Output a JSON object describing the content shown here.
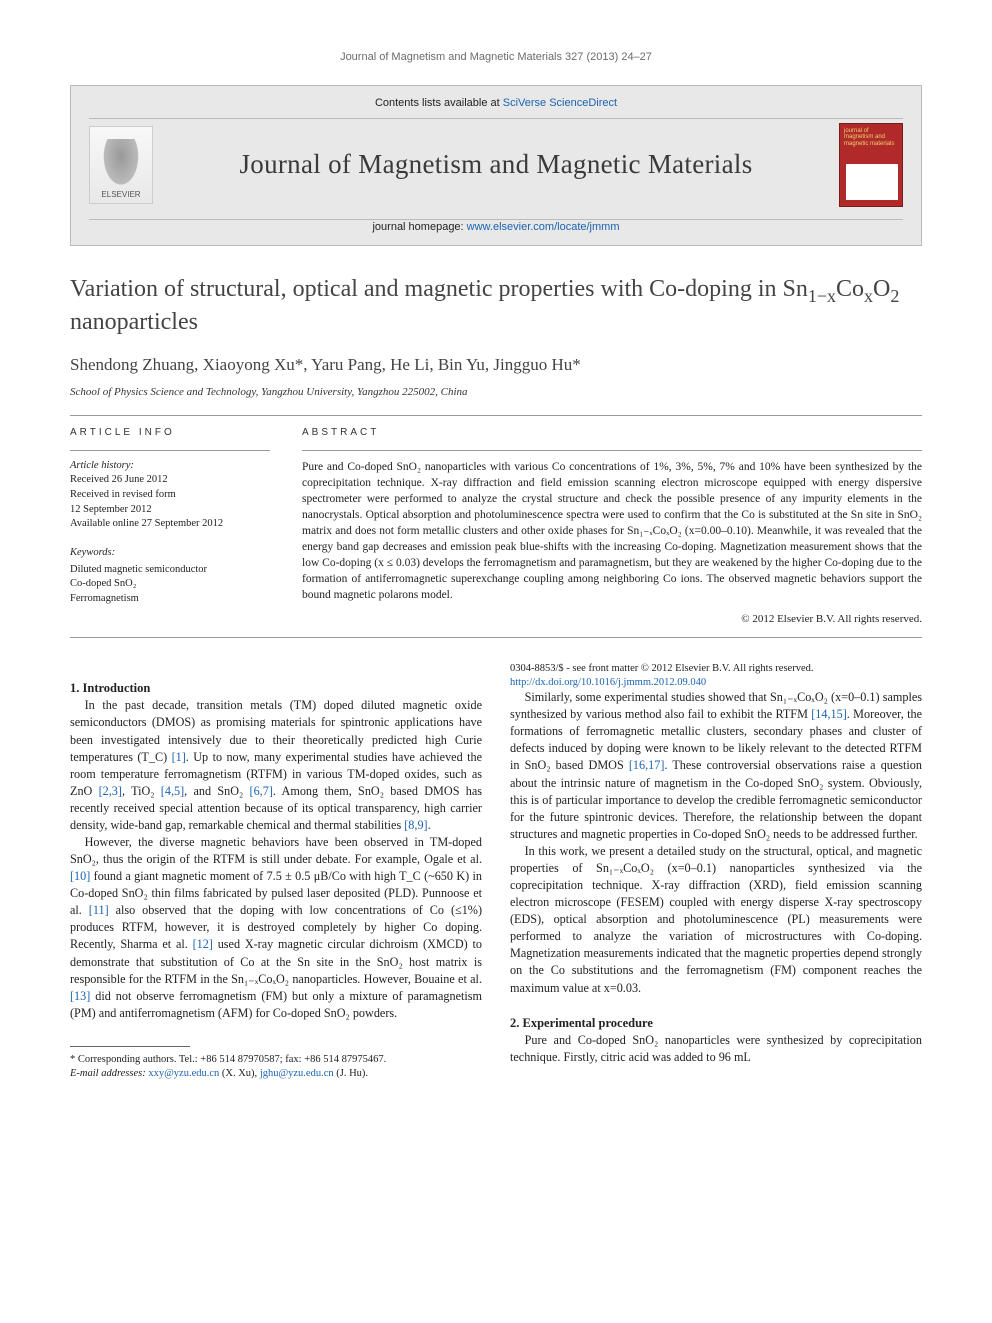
{
  "running_head": "Journal of Magnetism and Magnetic Materials 327 (2013) 24–27",
  "banner": {
    "contents_prefix": "Contents lists available at ",
    "contents_link": "SciVerse ScienceDirect",
    "journal_title": "Journal of Magnetism and Magnetic Materials",
    "homepage_prefix": "journal homepage: ",
    "homepage_link": "www.elsevier.com/locate/jmmm",
    "elsevier_label": "ELSEVIER",
    "cover_text": "journal of magnetism and magnetic materials"
  },
  "title_parts": {
    "a": "Variation of structural, optical and magnetic properties with Co-doping in Sn",
    "b": "1−x",
    "c": "Co",
    "d": "x",
    "e": "O",
    "f": "2",
    "g": " nanoparticles"
  },
  "authors": "Shendong Zhuang, Xiaoyong Xu*, Yaru Pang, He Li, Bin Yu, Jingguo Hu*",
  "affiliation": "School of Physics Science and Technology, Yangzhou University, Yangzhou 225002, China",
  "article_info_head": "article info",
  "abstract_head": "abstract",
  "history": {
    "label": "Article history:",
    "received": "Received 26 June 2012",
    "revised": "Received in revised form",
    "revised_date": "12 September 2012",
    "online": "Available online 27 September 2012"
  },
  "keywords_label": "Keywords:",
  "keywords": [
    "Diluted magnetic semiconductor",
    "Co-doped SnO₂",
    "Ferromagnetism"
  ],
  "abstract": "Pure and Co-doped SnO₂ nanoparticles with various Co concentrations of 1%, 3%, 5%, 7% and 10% have been synthesized by the coprecipitation technique. X-ray diffraction and field emission scanning electron microscope equipped with energy dispersive spectrometer were performed to analyze the crystal structure and check the possible presence of any impurity elements in the nanocrystals. Optical absorption and photoluminescence spectra were used to confirm that the Co is substituted at the Sn site in SnO₂ matrix and does not form metallic clusters and other oxide phases for Sn₁₋ₓCoₓO₂ (x=0.00–0.10). Meanwhile, it was revealed that the energy band gap decreases and emission peak blue-shifts with the increasing Co-doping. Magnetization measurement shows that the low Co-doping (x ≤ 0.03) develops the ferromagnetism and paramagnetism, but they are weakened by the higher Co-doping due to the formation of antiferromagnetic superexchange coupling among neighboring Co ions. The observed magnetic behaviors support the bound magnetic polarons model.",
  "copyright": "© 2012 Elsevier B.V. All rights reserved.",
  "section1": "1. Introduction",
  "intro_p1": "In the past decade, transition metals (TM) doped diluted magnetic oxide semiconductors (DMOS) as promising materials for spintronic applications have been investigated intensively due to their theoretically predicted high Curie temperatures (T_C) [1]. Up to now, many experimental studies have achieved the room temperature ferromagnetism (RTFM) in various TM-doped oxides, such as ZnO [2,3], TiO₂ [4,5], and SnO₂ [6,7]. Among them, SnO₂ based DMOS has recently received special attention because of its optical transparency, high carrier density, wide-band gap, remarkable chemical and thermal stabilities [8,9].",
  "intro_p2": "However, the diverse magnetic behaviors have been observed in TM-doped SnO₂, thus the origin of the RTFM is still under debate. For example, Ogale et al. [10] found a giant magnetic moment of 7.5 ± 0.5 μB/Co with high T_C (~650 K) in Co-doped SnO₂ thin films fabricated by pulsed laser deposited (PLD). Punnoose et al. [11] also observed that the doping with low concentrations of Co (≤1%) produces RTFM, however, it is destroyed completely by higher Co doping. Recently, Sharma et al. [12] used X-ray magnetic circular dichroism (XMCD) to demonstrate that substitution of Co at the Sn site in the SnO₂ host matrix is responsible for the RTFM in the Sn₁₋ₓCoₓO₂ nanoparticles. However, Bouaine et al. [13] did not observe ferromagnetism (FM) but only a mixture of paramagnetism (PM) and antiferromagnetism (AFM) for Co-doped SnO₂ powders.",
  "intro_p3": "Similarly, some experimental studies showed that Sn₁₋ₓCoₓO₂ (x=0–0.1) samples synthesized by various method also fail to exhibit the RTFM [14,15]. Moreover, the formations of ferromagnetic metallic clusters, secondary phases and cluster of defects induced by doping were known to be likely relevant to the detected RTFM in SnO₂ based DMOS [16,17]. These controversial observations raise a question about the intrinsic nature of magnetism in the Co-doped SnO₂ system. Obviously, this is of particular importance to develop the credible ferromagnetic semiconductor for the future spintronic devices. Therefore, the relationship between the dopant structures and magnetic properties in Co-doped SnO₂ needs to be addressed further.",
  "intro_p4": "In this work, we present a detailed study on the structural, optical, and magnetic properties of Sn₁₋ₓCoₓO₂ (x=0–0.1) nanoparticles synthesized via the coprecipitation technique. X-ray diffraction (XRD), field emission scanning electron microscope (FESEM) coupled with energy disperse X-ray spectroscopy (EDS), optical absorption and photoluminescence (PL) measurements were performed to analyze the variation of microstructures with Co-doping. Magnetization measurements indicated that the magnetic properties depend strongly on the Co substitutions and the ferromagnetism (FM) component reaches the maximum value at x=0.03.",
  "section2": "2. Experimental procedure",
  "exp_p1": "Pure and Co-doped SnO₂ nanoparticles were synthesized by coprecipitation technique. Firstly, citric acid was added to 96 mL",
  "footnote": {
    "marker": "* Corresponding authors. Tel.: +86 514 87970587; fax: +86 514 87975467.",
    "emails_label": "E-mail addresses: ",
    "email1": "xxy@yzu.edu.cn",
    "email1_who": " (X. Xu), ",
    "email2": "jghu@yzu.edu.cn",
    "email2_who": " (J. Hu)."
  },
  "bottom": {
    "issn": "0304-8853/$ - see front matter © 2012 Elsevier B.V. All rights reserved.",
    "doi": "http://dx.doi.org/10.1016/j.jmmm.2012.09.040"
  },
  "colors": {
    "link": "#1b63b0",
    "banner_bg": "#e8e8e8",
    "text": "#222222",
    "rule": "#999999"
  }
}
